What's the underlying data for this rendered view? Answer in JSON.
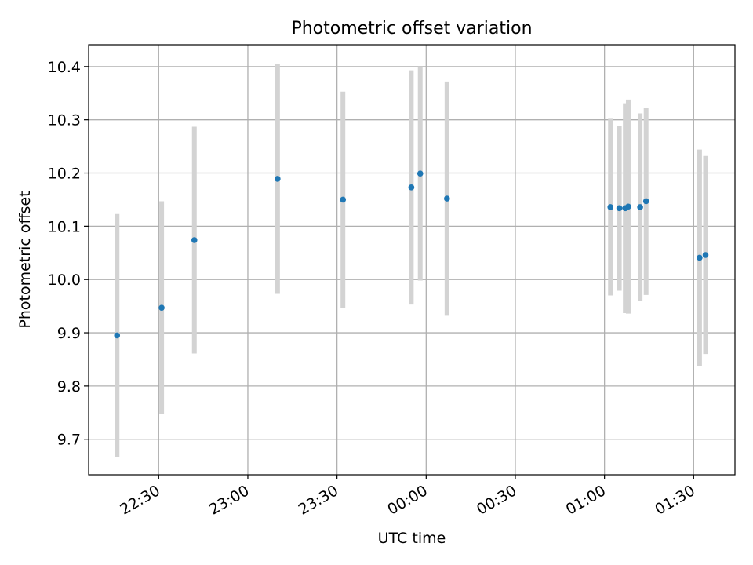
{
  "chart_data": {
    "type": "scatter",
    "title": "Photometric offset variation",
    "xlabel": "UTC time",
    "ylabel": "Photometric offset",
    "grid": true,
    "x_tick_labels": [
      "22:30",
      "23:00",
      "23:30",
      "00:00",
      "00:30",
      "01:00",
      "01:30"
    ],
    "y_tick_labels": [
      "9.7",
      "9.8",
      "9.9",
      "10.0",
      "10.1",
      "10.2",
      "10.3",
      "10.4"
    ],
    "colors": {
      "points": "#1f77b4",
      "errorbars": "#d3d3d3",
      "grid": "#b0b0b0"
    },
    "points": [
      {
        "t": "22:16",
        "y": 9.895,
        "err": 0.228
      },
      {
        "t": "22:31",
        "y": 9.947,
        "err": 0.2
      },
      {
        "t": "22:42",
        "y": 10.074,
        "err": 0.213
      },
      {
        "t": "23:10",
        "y": 10.189,
        "err": 0.216
      },
      {
        "t": "23:32",
        "y": 10.15,
        "err": 0.203
      },
      {
        "t": "23:55",
        "y": 10.173,
        "err": 0.22
      },
      {
        "t": "23:58",
        "y": 10.199,
        "err": 0.201
      },
      {
        "t": "00:07",
        "y": 10.152,
        "err": 0.22
      },
      {
        "t": "01:02",
        "y": 10.136,
        "err": 0.166
      },
      {
        "t": "01:05",
        "y": 10.134,
        "err": 0.155
      },
      {
        "t": "01:07",
        "y": 10.134,
        "err": 0.197
      },
      {
        "t": "01:08",
        "y": 10.137,
        "err": 0.201
      },
      {
        "t": "01:12",
        "y": 10.136,
        "err": 0.176
      },
      {
        "t": "01:14",
        "y": 10.147,
        "err": 0.176
      },
      {
        "t": "01:32",
        "y": 10.041,
        "err": 0.203
      },
      {
        "t": "01:34",
        "y": 10.046,
        "err": 0.186
      }
    ]
  }
}
